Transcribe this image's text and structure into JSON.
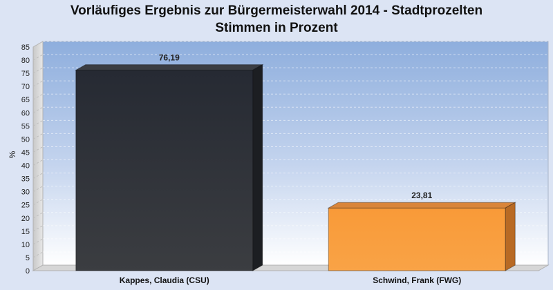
{
  "chart_data": {
    "type": "bar",
    "title": "Vorläufiges Ergebnis zur Bürgermeisterwahl 2014 - Stadtprozelten",
    "subtitle": "Stimmen in Prozent",
    "xlabel": "",
    "ylabel": "%",
    "ylim": [
      0,
      85
    ],
    "yticks": [
      0,
      5,
      10,
      15,
      20,
      25,
      30,
      35,
      40,
      45,
      50,
      55,
      60,
      65,
      70,
      75,
      80,
      85
    ],
    "grid": true,
    "categories": [
      "Kappes, Claudia (CSU)",
      "Schwind, Frank (FWG)"
    ],
    "values": [
      76.19,
      23.81
    ],
    "value_labels": [
      "76,19",
      "23,81"
    ],
    "colors": [
      "#2e3138",
      "#f99b3b"
    ]
  }
}
